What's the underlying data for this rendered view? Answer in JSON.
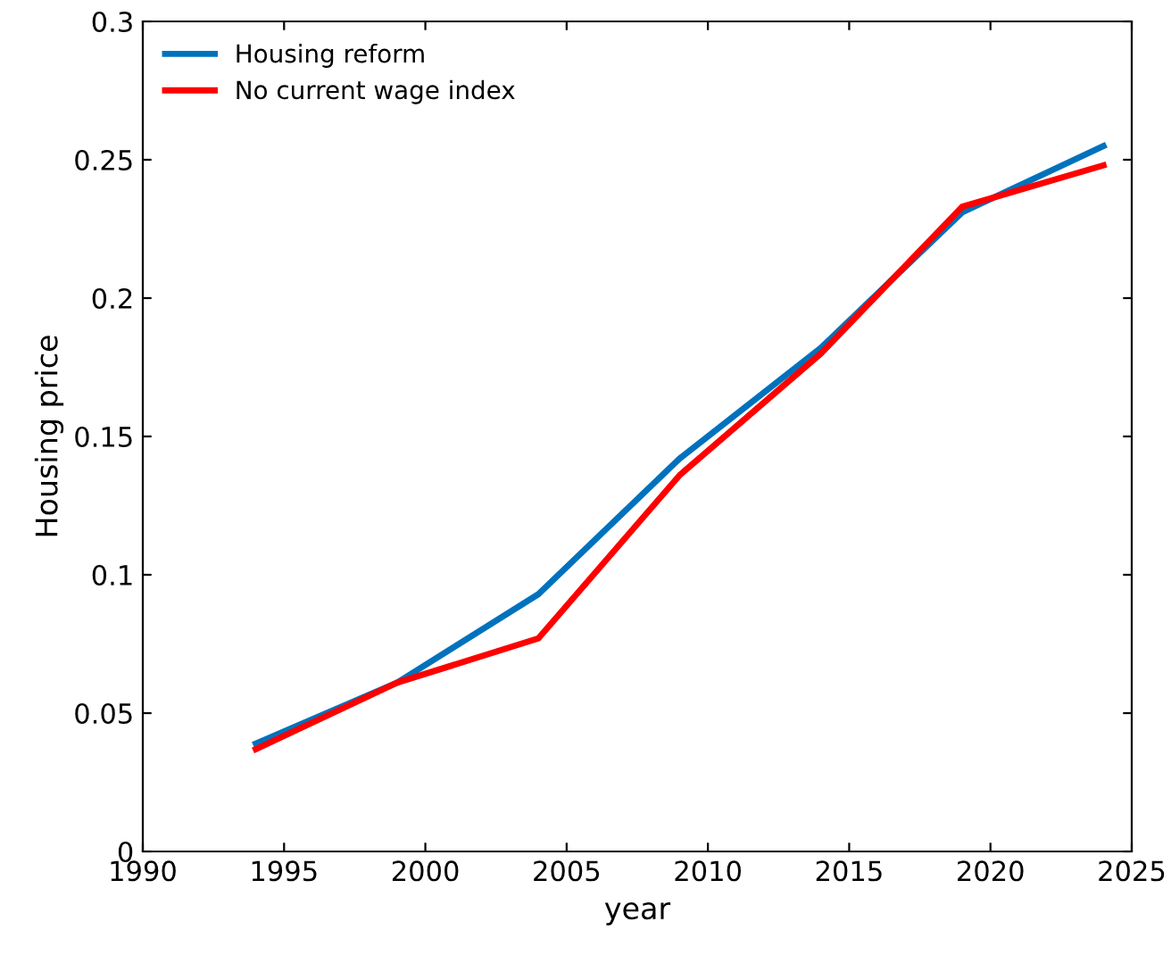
{
  "chart_data": {
    "type": "line",
    "xlabel": "year",
    "ylabel": "Housing price",
    "x": [
      1994,
      1999,
      2004,
      2009,
      2014,
      2019,
      2024
    ],
    "series": [
      {
        "name": "Housing reform",
        "color": "#0072bd",
        "values": [
          0.039,
          0.061,
          0.093,
          0.142,
          0.182,
          0.231,
          0.255
        ]
      },
      {
        "name": "No current wage index",
        "color": "#ff0000",
        "values": [
          0.037,
          0.061,
          0.077,
          0.136,
          0.18,
          0.233,
          0.248
        ]
      }
    ],
    "xlim": [
      1990,
      2025
    ],
    "xticks": [
      1990,
      1995,
      2000,
      2005,
      2010,
      2015,
      2020,
      2025
    ],
    "ylim": [
      0,
      0.3
    ],
    "yticks": [
      0,
      0.05,
      0.1,
      0.15,
      0.2,
      0.25,
      0.3
    ],
    "grid": false,
    "legend": "top left",
    "marker": "none",
    "line_style": "solid"
  }
}
